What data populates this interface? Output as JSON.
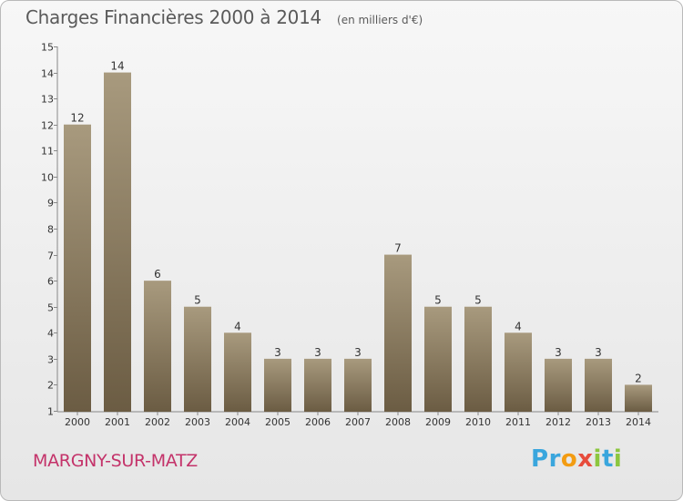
{
  "header": {
    "title": "Charges Financières 2000 à 2014",
    "unit_note": "(en milliers d'€)"
  },
  "footer": {
    "city": "MARGNY-SUR-MATZ",
    "logo_letters": [
      "P",
      "r",
      "o",
      "x",
      "i",
      "t",
      "i"
    ],
    "logo_colors": [
      "#3aa6dd",
      "#3aa6dd",
      "#f39c12",
      "#e74c3c",
      "#8cc63f",
      "#3aa6dd",
      "#8cc63f"
    ]
  },
  "chart_data": {
    "type": "bar",
    "title": "Charges Financières 2000 à 2014",
    "xlabel": "",
    "ylabel": "",
    "categories": [
      "2000",
      "2001",
      "2002",
      "2003",
      "2004",
      "2005",
      "2006",
      "2007",
      "2008",
      "2009",
      "2010",
      "2011",
      "2012",
      "2013",
      "2014"
    ],
    "values": [
      12,
      14,
      6,
      5,
      4,
      3,
      3,
      3,
      7,
      5,
      5,
      4,
      3,
      3,
      2
    ],
    "ylim": [
      1,
      15
    ],
    "yticks": [
      1,
      2,
      3,
      4,
      5,
      6,
      7,
      8,
      9,
      10,
      11,
      12,
      13,
      14,
      15
    ],
    "grid": false,
    "bar_color_top": "#a89a7e",
    "bar_color_bottom": "#6b5c43",
    "text_color": "#333333"
  }
}
